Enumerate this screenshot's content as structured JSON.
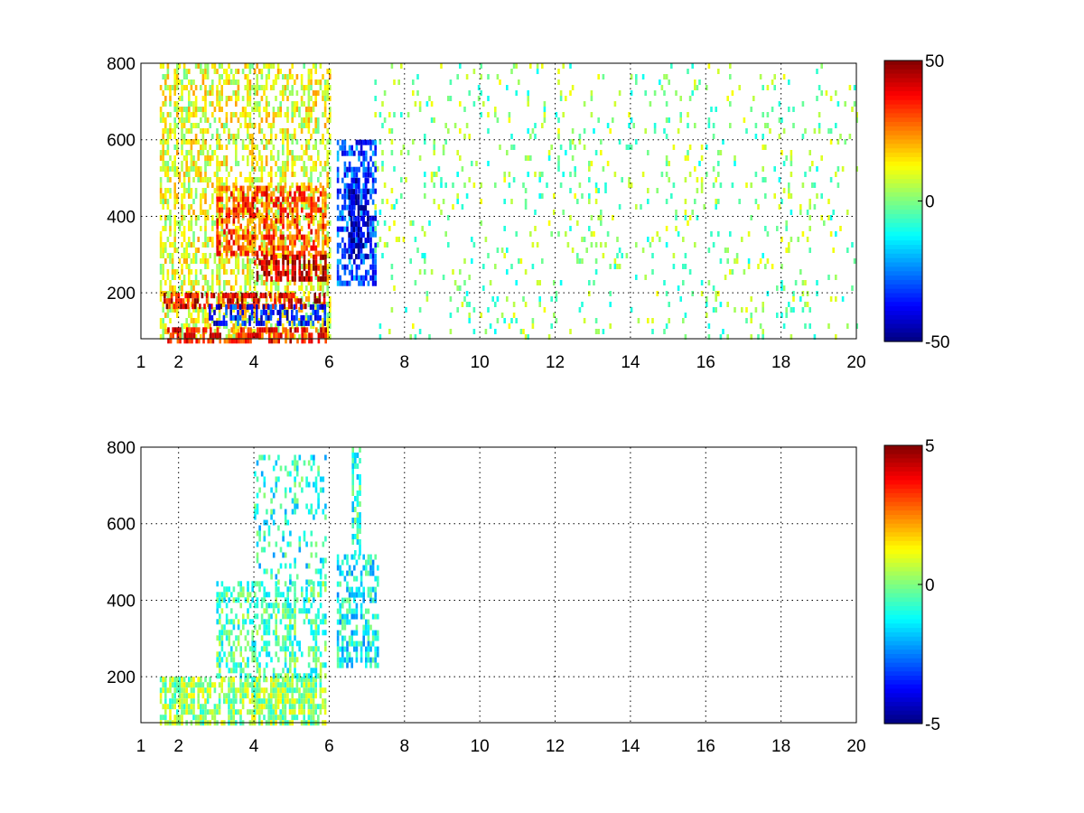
{
  "chart_data": [
    {
      "type": "heatmap",
      "title": "",
      "xlabel": "",
      "ylabel": "",
      "xlim": [
        1,
        20
      ],
      "ylim": [
        80,
        800
      ],
      "x_ticks": [
        1,
        2,
        4,
        6,
        8,
        10,
        12,
        14,
        16,
        18,
        20
      ],
      "x_tick_labels": [
        "1",
        "2",
        "4",
        "6",
        "8",
        "10",
        "12",
        "14",
        "16",
        "18",
        "20"
      ],
      "y_ticks": [
        200,
        400,
        600,
        800
      ],
      "y_tick_labels": [
        "200",
        "400",
        "600",
        "800"
      ],
      "grid": true,
      "colormap": "jet",
      "colorbar": {
        "limits": [
          -50,
          50
        ],
        "ticks": [
          50,
          0,
          -50
        ],
        "tick_labels": [
          "50",
          "0",
          "-50"
        ],
        "placement": "right"
      },
      "features": [
        {
          "x_range": [
            1.5,
            6.0
          ],
          "y_range": [
            80,
            800
          ],
          "value": 10,
          "density": 0.45
        },
        {
          "x_range": [
            3.0,
            5.9
          ],
          "y_range": [
            300,
            480
          ],
          "value": 30,
          "density": 0.5
        },
        {
          "x_range": [
            1.6,
            5.9
          ],
          "y_range": [
            170,
            200
          ],
          "value": 40,
          "density": 0.6
        },
        {
          "x_range": [
            2.8,
            5.9
          ],
          "y_range": [
            120,
            170
          ],
          "value": -35,
          "density": 0.5
        },
        {
          "x_range": [
            1.7,
            5.9
          ],
          "y_range": [
            80,
            110
          ],
          "value": 35,
          "density": 0.6
        },
        {
          "x_range": [
            4.0,
            5.9
          ],
          "y_range": [
            230,
            300
          ],
          "value": 45,
          "density": 0.7
        },
        {
          "x_range": [
            6.2,
            7.2
          ],
          "y_range": [
            220,
            600
          ],
          "value": -30,
          "density": 0.6
        },
        {
          "x_range": [
            6.5,
            7.0
          ],
          "y_range": [
            300,
            500
          ],
          "value": -45,
          "density": 0.7
        },
        {
          "x_range": [
            7.2,
            20.0
          ],
          "y_range": [
            80,
            800
          ],
          "value": 0,
          "density": 0.08
        }
      ]
    },
    {
      "type": "heatmap",
      "title": "",
      "xlabel": "",
      "ylabel": "",
      "xlim": [
        1,
        20
      ],
      "ylim": [
        80,
        800
      ],
      "x_ticks": [
        1,
        2,
        4,
        6,
        8,
        10,
        12,
        14,
        16,
        18,
        20
      ],
      "x_tick_labels": [
        "1",
        "2",
        "4",
        "6",
        "8",
        "10",
        "12",
        "14",
        "16",
        "18",
        "20"
      ],
      "y_ticks": [
        200,
        400,
        600,
        800
      ],
      "y_tick_labels": [
        "200",
        "400",
        "600",
        "800"
      ],
      "grid": true,
      "colormap": "jet",
      "colorbar": {
        "limits": [
          -5,
          5
        ],
        "ticks": [
          5,
          0,
          -5
        ],
        "tick_labels": [
          "5",
          "0",
          "-5"
        ],
        "placement": "right"
      },
      "features": [
        {
          "x_range": [
            1.5,
            5.9
          ],
          "y_range": [
            80,
            200
          ],
          "value": 0.2,
          "density": 0.7
        },
        {
          "x_range": [
            3.0,
            5.9
          ],
          "y_range": [
            200,
            450
          ],
          "value": -0.5,
          "density": 0.45
        },
        {
          "x_range": [
            4.0,
            5.9
          ],
          "y_range": [
            450,
            780
          ],
          "value": -1.0,
          "density": 0.25
        },
        {
          "x_range": [
            6.2,
            7.3
          ],
          "y_range": [
            230,
            520
          ],
          "value": -1.2,
          "density": 0.55
        },
        {
          "x_range": [
            6.6,
            6.8
          ],
          "y_range": [
            520,
            800
          ],
          "value": -0.8,
          "density": 0.5
        }
      ]
    }
  ]
}
